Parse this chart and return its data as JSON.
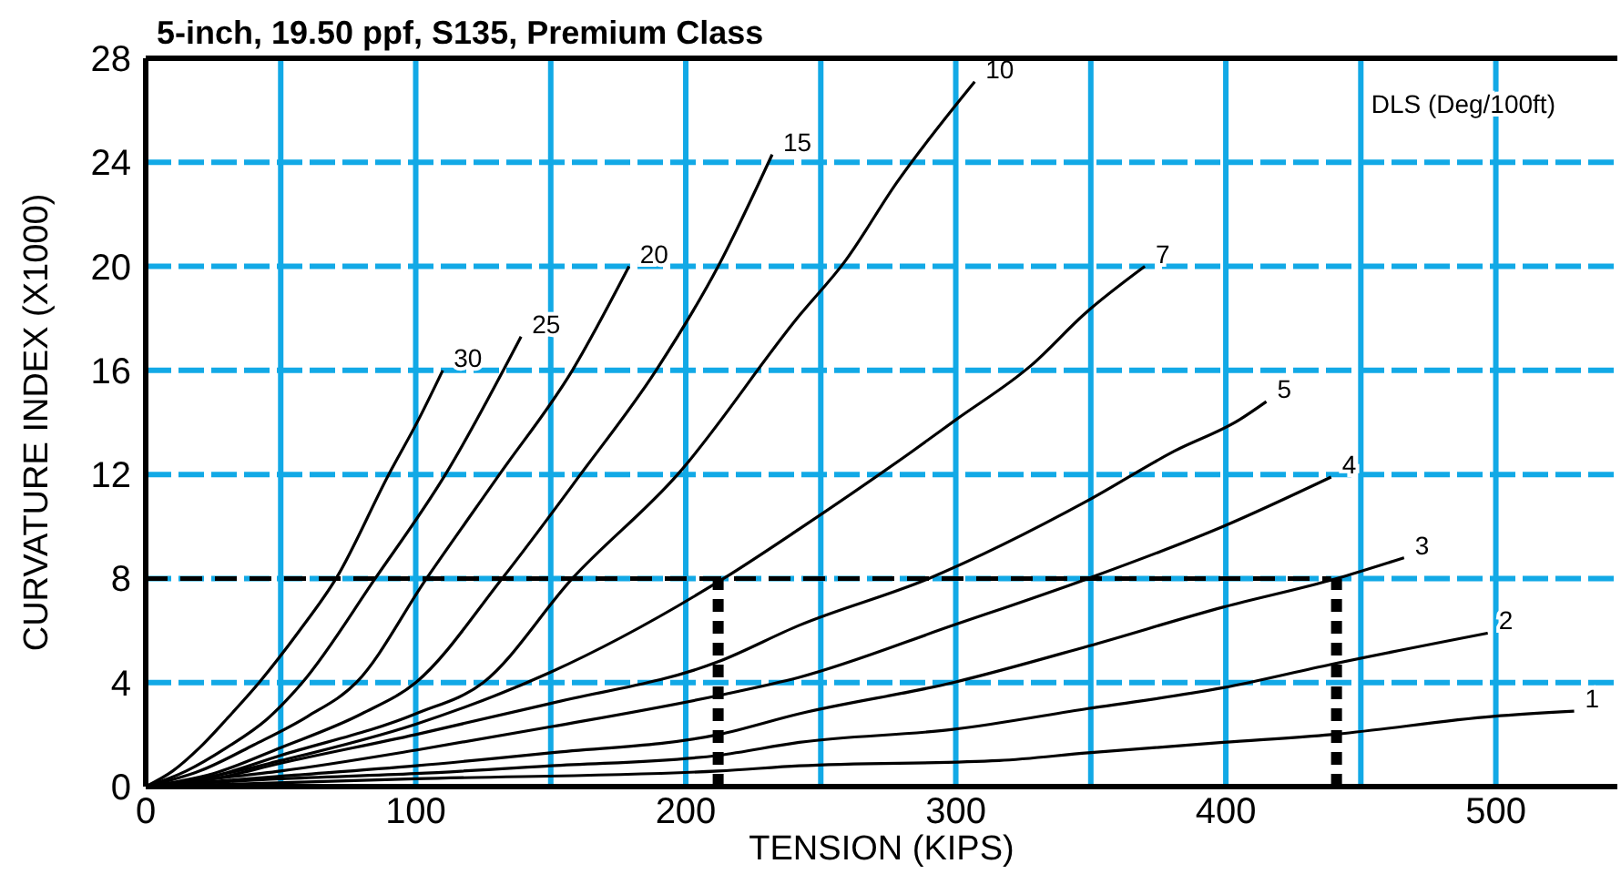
{
  "chart_data": {
    "type": "line",
    "title": "5-inch, 19.50 ppf, S135, Premium Class",
    "xlabel": "TENSION (KIPS)",
    "ylabel": "CURVATURE INDEX (X1000)",
    "annotations": [
      "DLS (Deg/100ft)"
    ],
    "xlim": [
      0,
      545
    ],
    "ylim": [
      0,
      28
    ],
    "xticks": [
      0,
      {
        "value": 50,
        "label": null
      },
      100,
      {
        "value": 150,
        "label": null
      },
      200,
      {
        "value": 250,
        "label": null
      },
      300,
      {
        "value": 350,
        "label": null
      },
      400,
      {
        "value": 450,
        "label": null
      },
      500
    ],
    "yticks": [
      0,
      4,
      8,
      12,
      16,
      20,
      24,
      28
    ],
    "grid": true,
    "marker": "none",
    "line_style": "solid",
    "series": [
      {
        "name": "30",
        "color": "#000000",
        "x": [
          0,
          10,
          20,
          30,
          42,
          57,
          70.5,
          90,
          101,
          110
        ],
        "values": [
          0,
          0.6,
          1.5,
          2.6,
          4,
          6,
          8,
          12,
          14.1,
          16
        ]
      },
      {
        "name": "25",
        "color": "#000000",
        "x": [
          0,
          15,
          30,
          45,
          58,
          85,
          111,
          139
        ],
        "values": [
          0,
          0.6,
          1.5,
          2.6,
          4,
          8,
          12,
          17.3
        ]
      },
      {
        "name": "20",
        "color": "#000000",
        "x": [
          0,
          20,
          40,
          60,
          78,
          104,
          131,
          158,
          179
        ],
        "values": [
          0,
          0.6,
          1.6,
          2.7,
          4,
          8,
          12,
          16,
          20
        ]
      },
      {
        "name": "15",
        "color": "#000000",
        "x": [
          0,
          25,
          50,
          80,
          100,
          132,
          161,
          189,
          212,
          232
        ],
        "values": [
          0,
          0.5,
          1.5,
          2.8,
          4,
          8,
          12,
          16,
          20,
          24.3
        ]
      },
      {
        "name": "10",
        "color": "#000000",
        "x": [
          0,
          25,
          50,
          100,
          125,
          158,
          197,
          242,
          259,
          278,
          307
        ],
        "values": [
          0,
          0.4,
          1.2,
          2.8,
          4,
          8,
          12,
          18.1,
          20.2,
          23.2,
          27.1
        ]
      },
      {
        "name": "7",
        "color": "#000000",
        "x": [
          0,
          25,
          50,
          100,
          150,
          214,
          242,
          284,
          300,
          328,
          348,
          370
        ],
        "values": [
          0,
          0.4,
          1,
          2.4,
          4.4,
          8,
          9.9,
          12.9,
          14.1,
          16.2,
          18.2,
          20
        ]
      },
      {
        "name": "5",
        "color": "#000000",
        "x": [
          0,
          25,
          50,
          100,
          150,
          212,
          242,
          290,
          349,
          381,
          405,
          415
        ],
        "values": [
          0,
          0.3,
          0.9,
          2,
          3.2,
          4.8,
          6.2,
          8,
          11,
          12.9,
          14.1,
          14.8
        ]
      },
      {
        "name": "4",
        "color": "#000000",
        "x": [
          0,
          25,
          50,
          100,
          150,
          212,
          242,
          299,
          349,
          399,
          439
        ],
        "values": [
          0,
          0.3,
          0.6,
          1.4,
          2.3,
          3.5,
          4.2,
          6.2,
          8,
          10,
          11.9
        ]
      },
      {
        "name": "3",
        "color": "#000000",
        "x": [
          0,
          50,
          100,
          150,
          212,
          242,
          299,
          349,
          399,
          441,
          466
        ],
        "values": [
          0,
          0.4,
          0.8,
          1.3,
          2,
          2.8,
          4,
          5.4,
          6.9,
          8,
          8.8
        ]
      },
      {
        "name": "2",
        "color": "#000000",
        "x": [
          0,
          50,
          100,
          150,
          212,
          242,
          299,
          349,
          399,
          439,
          497
        ],
        "values": [
          0,
          0.3,
          0.5,
          0.8,
          1.2,
          1.7,
          2.2,
          3,
          3.8,
          4.7,
          5.9
        ]
      },
      {
        "name": "1",
        "color": "#000000",
        "x": [
          0,
          100,
          212,
          242,
          316,
          349,
          399,
          439,
          499,
          529
        ],
        "values": [
          0,
          0.3,
          0.6,
          0.8,
          1,
          1.3,
          1.7,
          2,
          2.7,
          2.9
        ]
      },
      {
        "color": "#000000",
        "line_style": "dashed",
        "x": [
          0,
          439
        ],
        "values": [
          8,
          8
        ]
      },
      {
        "color": "#000000",
        "line_style": "dotted",
        "x": [
          212,
          212
        ],
        "values": [
          0,
          8
        ]
      },
      {
        "color": "#000000",
        "line_style": "dotted",
        "x": [
          441,
          441
        ],
        "values": [
          0,
          8
        ]
      }
    ]
  }
}
